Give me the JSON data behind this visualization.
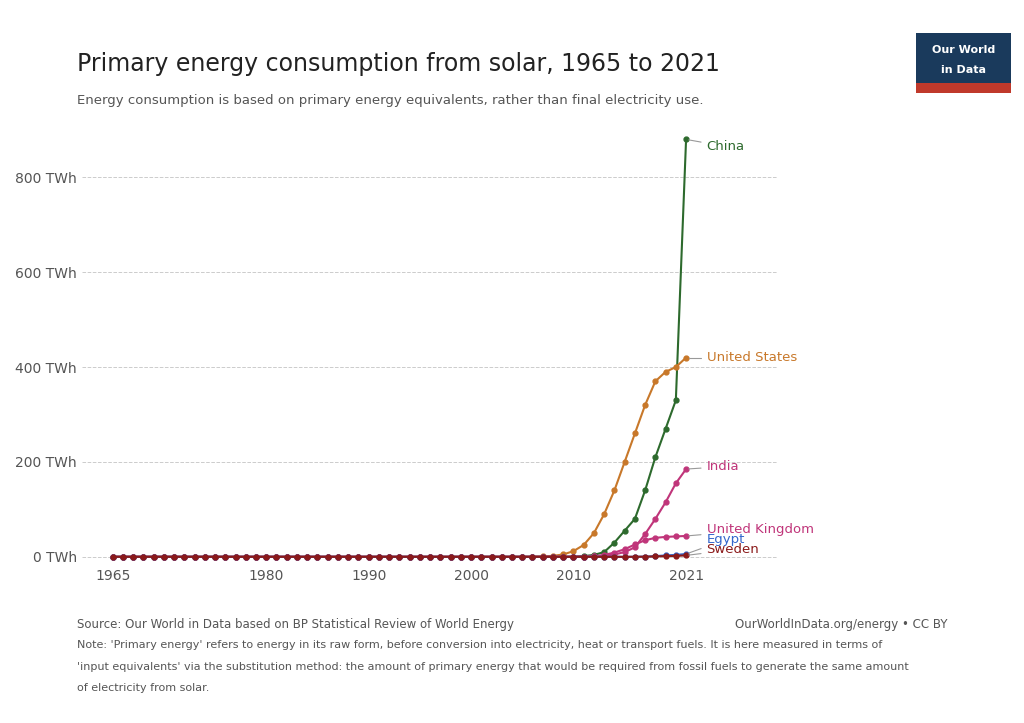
{
  "title": "Primary energy consumption from solar, 1965 to 2021",
  "subtitle": "Energy consumption is based on primary energy equivalents, rather than final electricity use.",
  "source_text": "Source: Our World in Data based on BP Statistical Review of World Energy",
  "source_right": "OurWorldInData.org/energy • CC BY",
  "note_line1": "Note: 'Primary energy' refers to energy in its raw form, before conversion into electricity, heat or transport fuels. It is here measured in terms of",
  "note_line2": "'input equivalents' via the substitution method: the amount of primary energy that would be required from fossil fuels to generate the same amount",
  "note_line3": "of electricity from solar.",
  "background_color": "#ffffff",
  "series": {
    "China": {
      "color": "#2d6a2d",
      "years": [
        1965,
        1966,
        1967,
        1968,
        1969,
        1970,
        1971,
        1972,
        1973,
        1974,
        1975,
        1976,
        1977,
        1978,
        1979,
        1980,
        1981,
        1982,
        1983,
        1984,
        1985,
        1986,
        1987,
        1988,
        1989,
        1990,
        1991,
        1992,
        1993,
        1994,
        1995,
        1996,
        1997,
        1998,
        1999,
        2000,
        2001,
        2002,
        2003,
        2004,
        2005,
        2006,
        2007,
        2008,
        2009,
        2010,
        2011,
        2012,
        2013,
        2014,
        2015,
        2016,
        2017,
        2018,
        2019,
        2020,
        2021
      ],
      "values": [
        0,
        0,
        0,
        0,
        0,
        0,
        0,
        0,
        0,
        0,
        0,
        0,
        0,
        0,
        0,
        0,
        0,
        0,
        0,
        0,
        0,
        0,
        0,
        0,
        0,
        0,
        0,
        0,
        0,
        0,
        0,
        0,
        0,
        0,
        0,
        0,
        0,
        0,
        0,
        0,
        0,
        0,
        0,
        0,
        0,
        0.5,
        1.5,
        4,
        10,
        30,
        55,
        80,
        140,
        210,
        270,
        330,
        880
      ]
    },
    "United States": {
      "color": "#c8782a",
      "years": [
        1965,
        1966,
        1967,
        1968,
        1969,
        1970,
        1971,
        1972,
        1973,
        1974,
        1975,
        1976,
        1977,
        1978,
        1979,
        1980,
        1981,
        1982,
        1983,
        1984,
        1985,
        1986,
        1987,
        1988,
        1989,
        1990,
        1991,
        1992,
        1993,
        1994,
        1995,
        1996,
        1997,
        1998,
        1999,
        2000,
        2001,
        2002,
        2003,
        2004,
        2005,
        2006,
        2007,
        2008,
        2009,
        2010,
        2011,
        2012,
        2013,
        2014,
        2015,
        2016,
        2017,
        2018,
        2019,
        2020,
        2021
      ],
      "values": [
        0,
        0,
        0,
        0,
        0,
        0,
        0,
        0,
        0,
        0,
        0,
        0,
        0,
        0,
        0,
        0,
        0,
        0,
        0,
        0,
        0,
        0,
        0,
        0,
        0,
        0,
        0,
        0,
        0,
        0,
        0,
        0,
        0,
        0,
        0,
        0,
        0,
        0,
        0,
        0,
        0,
        0.5,
        1,
        2,
        5,
        12,
        25,
        50,
        90,
        140,
        200,
        260,
        320,
        370,
        390,
        400,
        420
      ]
    },
    "India": {
      "color": "#c0357a",
      "years": [
        1965,
        1966,
        1967,
        1968,
        1969,
        1970,
        1971,
        1972,
        1973,
        1974,
        1975,
        1976,
        1977,
        1978,
        1979,
        1980,
        1981,
        1982,
        1983,
        1984,
        1985,
        1986,
        1987,
        1988,
        1989,
        1990,
        1991,
        1992,
        1993,
        1994,
        1995,
        1996,
        1997,
        1998,
        1999,
        2000,
        2001,
        2002,
        2003,
        2004,
        2005,
        2006,
        2007,
        2008,
        2009,
        2010,
        2011,
        2012,
        2013,
        2014,
        2015,
        2016,
        2017,
        2018,
        2019,
        2020,
        2021
      ],
      "values": [
        0,
        0,
        0,
        0,
        0,
        0,
        0,
        0,
        0,
        0,
        0,
        0,
        0,
        0,
        0,
        0,
        0,
        0,
        0,
        0,
        0,
        0,
        0,
        0,
        0,
        0,
        0,
        0,
        0,
        0,
        0,
        0,
        0,
        0,
        0,
        0,
        0,
        0,
        0,
        0,
        0,
        0,
        0,
        0,
        0,
        0.2,
        0.5,
        1,
        2,
        5,
        10,
        20,
        48,
        80,
        115,
        155,
        185
      ]
    },
    "United Kingdom": {
      "color": "#c0357a",
      "years": [
        1965,
        1966,
        1967,
        1968,
        1969,
        1970,
        1971,
        1972,
        1973,
        1974,
        1975,
        1976,
        1977,
        1978,
        1979,
        1980,
        1981,
        1982,
        1983,
        1984,
        1985,
        1986,
        1987,
        1988,
        1989,
        1990,
        1991,
        1992,
        1993,
        1994,
        1995,
        1996,
        1997,
        1998,
        1999,
        2000,
        2001,
        2002,
        2003,
        2004,
        2005,
        2006,
        2007,
        2008,
        2009,
        2010,
        2011,
        2012,
        2013,
        2014,
        2015,
        2016,
        2017,
        2018,
        2019,
        2020,
        2021
      ],
      "values": [
        0,
        0,
        0,
        0,
        0,
        0,
        0,
        0,
        0,
        0,
        0,
        0,
        0,
        0,
        0,
        0,
        0,
        0,
        0,
        0,
        0,
        0,
        0,
        0,
        0,
        0,
        0,
        0,
        0,
        0,
        0,
        0,
        0,
        0,
        0,
        0,
        0,
        0,
        0,
        0,
        0,
        0,
        0,
        0,
        0,
        0,
        0.2,
        1,
        4,
        9,
        16,
        26,
        35,
        40,
        42,
        43,
        44
      ]
    },
    "Egypt": {
      "color": "#3366cc",
      "years": [
        1965,
        1966,
        1967,
        1968,
        1969,
        1970,
        1971,
        1972,
        1973,
        1974,
        1975,
        1976,
        1977,
        1978,
        1979,
        1980,
        1981,
        1982,
        1983,
        1984,
        1985,
        1986,
        1987,
        1988,
        1989,
        1990,
        1991,
        1992,
        1993,
        1994,
        1995,
        1996,
        1997,
        1998,
        1999,
        2000,
        2001,
        2002,
        2003,
        2004,
        2005,
        2006,
        2007,
        2008,
        2009,
        2010,
        2011,
        2012,
        2013,
        2014,
        2015,
        2016,
        2017,
        2018,
        2019,
        2020,
        2021
      ],
      "values": [
        0,
        0,
        0,
        0,
        0,
        0,
        0,
        0,
        0,
        0,
        0,
        0,
        0,
        0,
        0,
        0,
        0,
        0,
        0,
        0,
        0,
        0,
        0,
        0,
        0,
        0,
        0,
        0,
        0,
        0,
        0,
        0,
        0,
        0,
        0,
        0,
        0,
        0,
        0,
        0,
        0,
        0,
        0,
        0,
        0,
        0,
        0,
        0,
        0,
        0,
        0,
        0.1,
        0.5,
        1.5,
        3,
        4,
        6
      ]
    },
    "Sweden": {
      "color": "#8b1a1a",
      "years": [
        1965,
        1966,
        1967,
        1968,
        1969,
        1970,
        1971,
        1972,
        1973,
        1974,
        1975,
        1976,
        1977,
        1978,
        1979,
        1980,
        1981,
        1982,
        1983,
        1984,
        1985,
        1986,
        1987,
        1988,
        1989,
        1990,
        1991,
        1992,
        1993,
        1994,
        1995,
        1996,
        1997,
        1998,
        1999,
        2000,
        2001,
        2002,
        2003,
        2004,
        2005,
        2006,
        2007,
        2008,
        2009,
        2010,
        2011,
        2012,
        2013,
        2014,
        2015,
        2016,
        2017,
        2018,
        2019,
        2020,
        2021
      ],
      "values": [
        0,
        0,
        0,
        0,
        0,
        0,
        0,
        0,
        0,
        0,
        0,
        0,
        0,
        0,
        0,
        0,
        0,
        0,
        0,
        0,
        0,
        0,
        0,
        0,
        0,
        0,
        0,
        0,
        0,
        0,
        0,
        0,
        0,
        0,
        0,
        0,
        0,
        0,
        0,
        0,
        0,
        0,
        0,
        0,
        0,
        0,
        0,
        0,
        0,
        0,
        0,
        0.1,
        0.3,
        0.8,
        1.5,
        2,
        3
      ]
    }
  },
  "ylim": [
    -15,
    930
  ],
  "yticks": [
    0,
    200,
    400,
    600,
    800
  ],
  "xlim": [
    1962,
    2030
  ],
  "xticks": [
    1965,
    1980,
    1990,
    2000,
    2010,
    2021
  ]
}
